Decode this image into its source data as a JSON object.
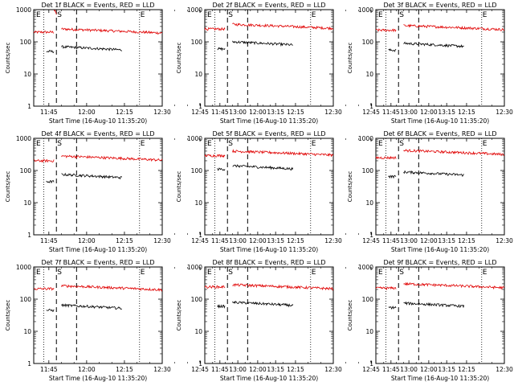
{
  "colors": {
    "events": "#000000",
    "lld": "#e00000",
    "axis": "#000000",
    "background": "#ffffff"
  },
  "common": {
    "ylabel": "Counts/sec",
    "xlabel": "Start Time (16-Aug-10 11:35:20)",
    "xticks": [
      "11:45",
      "12:00",
      "12:15",
      "12:30",
      "12:45",
      "13:00",
      "13:15"
    ],
    "yticks": [
      "1",
      "10",
      "100",
      "1000"
    ],
    "marker_labels": [
      "E",
      "S",
      "E"
    ]
  },
  "chart_data": [
    {
      "type": "line",
      "title": "Det 1f BLACK = Events, RED = LLD",
      "xlim_minutes": [
        -6,
        45
      ],
      "ylim": [
        1,
        1000
      ],
      "yscale": "log",
      "vlines_dotted_minutes": [
        -2,
        36
      ],
      "vlines_dashed_minutes": [
        3,
        11
      ],
      "series": [
        {
          "name": "LLD",
          "segments": [
            [
              -6,
              2,
              200
            ],
            [
              2,
              3,
              1000
            ],
            [
              5,
              45,
              250
            ]
          ]
        },
        {
          "name": "Events",
          "segments": [
            [
              -1,
              2,
              50
            ],
            [
              5,
              29,
              70
            ]
          ]
        }
      ]
    },
    {
      "type": "line",
      "title": "Det 2f BLACK = Events, RED = LLD",
      "xlim_minutes": [
        -6,
        45
      ],
      "ylim": [
        1,
        1000
      ],
      "yscale": "log",
      "vlines_dotted_minutes": [
        -2,
        36
      ],
      "vlines_dashed_minutes": [
        3,
        11
      ],
      "series": [
        {
          "name": "LLD",
          "segments": [
            [
              -6,
              2,
              250
            ],
            [
              5,
              45,
              350
            ]
          ]
        },
        {
          "name": "Events",
          "segments": [
            [
              -1,
              2,
              60
            ],
            [
              5,
              29,
              100
            ]
          ]
        }
      ]
    },
    {
      "type": "line",
      "title": "Det 3f BLACK = Events, RED = LLD",
      "xlim_minutes": [
        -6,
        45
      ],
      "ylim": [
        1,
        1000
      ],
      "yscale": "log",
      "vlines_dotted_minutes": [
        -2,
        36
      ],
      "vlines_dashed_minutes": [
        3,
        11
      ],
      "series": [
        {
          "name": "LLD",
          "segments": [
            [
              -6,
              2,
              230
            ],
            [
              5,
              45,
              320
            ]
          ]
        },
        {
          "name": "Events",
          "segments": [
            [
              -1,
              2,
              55
            ],
            [
              5,
              29,
              90
            ]
          ]
        }
      ]
    },
    {
      "type": "line",
      "title": "Det 4f BLACK = Events, RED = LLD",
      "xlim_minutes": [
        -6,
        45
      ],
      "ylim": [
        1,
        1000
      ],
      "yscale": "log",
      "vlines_dotted_minutes": [
        -2,
        36
      ],
      "vlines_dashed_minutes": [
        3,
        11
      ],
      "series": [
        {
          "name": "LLD",
          "segments": [
            [
              -6,
              2,
              200
            ],
            [
              5,
              45,
              280
            ]
          ]
        },
        {
          "name": "Events",
          "segments": [
            [
              -1,
              2,
              45
            ],
            [
              5,
              29,
              75
            ]
          ]
        }
      ]
    },
    {
      "type": "line",
      "title": "Det 5f BLACK = Events, RED = LLD",
      "xlim_minutes": [
        -6,
        45
      ],
      "ylim": [
        1,
        1000
      ],
      "yscale": "log",
      "vlines_dotted_minutes": [
        -2,
        36
      ],
      "vlines_dashed_minutes": [
        3,
        11
      ],
      "series": [
        {
          "name": "LLD",
          "segments": [
            [
              -6,
              2,
              290
            ],
            [
              5,
              45,
              400
            ]
          ]
        },
        {
          "name": "Events",
          "segments": [
            [
              -1,
              2,
              110
            ],
            [
              5,
              29,
              140
            ]
          ]
        }
      ]
    },
    {
      "type": "line",
      "title": "Det 6f BLACK = Events, RED = LLD",
      "xlim_minutes": [
        -6,
        45
      ],
      "ylim": [
        1,
        1000
      ],
      "yscale": "log",
      "vlines_dotted_minutes": [
        -2,
        36
      ],
      "vlines_dashed_minutes": [
        3,
        11
      ],
      "series": [
        {
          "name": "LLD",
          "segments": [
            [
              -6,
              2,
              250
            ],
            [
              5,
              45,
              420
            ]
          ]
        },
        {
          "name": "Events",
          "segments": [
            [
              -1,
              2,
              65
            ],
            [
              5,
              29,
              90
            ]
          ]
        }
      ]
    },
    {
      "type": "line",
      "title": "Det 7f BLACK = Events, RED = LLD",
      "xlim_minutes": [
        -6,
        45
      ],
      "ylim": [
        1,
        1000
      ],
      "yscale": "log",
      "vlines_dotted_minutes": [
        -2,
        36
      ],
      "vlines_dashed_minutes": [
        3,
        11
      ],
      "series": [
        {
          "name": "LLD",
          "segments": [
            [
              -6,
              2,
              210
            ],
            [
              5,
              45,
              260
            ]
          ]
        },
        {
          "name": "Events",
          "segments": [
            [
              -1,
              2,
              45
            ],
            [
              5,
              29,
              65
            ]
          ]
        }
      ]
    },
    {
      "type": "line",
      "title": "Det 8f BLACK = Events, RED = LLD",
      "xlim_minutes": [
        -6,
        45
      ],
      "ylim": [
        1,
        1000
      ],
      "yscale": "log",
      "vlines_dotted_minutes": [
        -2,
        36
      ],
      "vlines_dashed_minutes": [
        3,
        11
      ],
      "series": [
        {
          "name": "LLD",
          "segments": [
            [
              -6,
              2,
              240
            ],
            [
              5,
              45,
              280
            ]
          ]
        },
        {
          "name": "Events",
          "segments": [
            [
              -1,
              2,
              60
            ],
            [
              5,
              29,
              80
            ]
          ]
        }
      ]
    },
    {
      "type": "line",
      "title": "Det 9f BLACK = Events, RED = LLD",
      "xlim_minutes": [
        -6,
        45
      ],
      "ylim": [
        1,
        1000
      ],
      "yscale": "log",
      "vlines_dotted_minutes": [
        -2,
        36
      ],
      "vlines_dashed_minutes": [
        3,
        11
      ],
      "series": [
        {
          "name": "LLD",
          "segments": [
            [
              -6,
              2,
              220
            ],
            [
              5,
              45,
              300
            ]
          ]
        },
        {
          "name": "Events",
          "segments": [
            [
              -1,
              2,
              55
            ],
            [
              5,
              29,
              75
            ]
          ]
        }
      ]
    }
  ]
}
